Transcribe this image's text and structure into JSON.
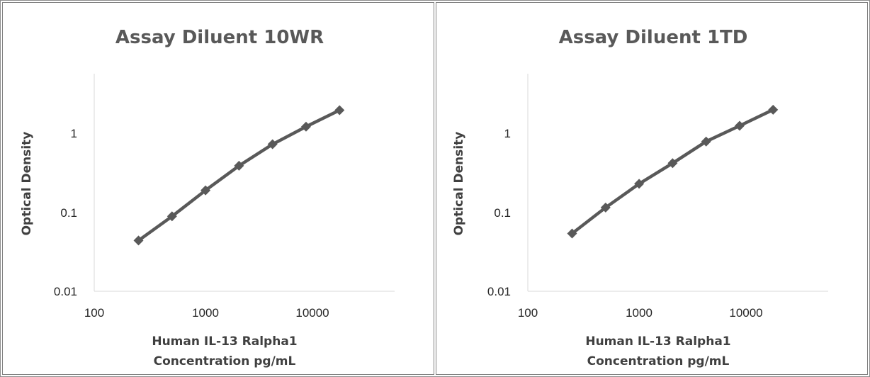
{
  "chart_data": [
    {
      "type": "line",
      "title": "Assay Diluent 10WR",
      "xlabel": [
        "Human IL-13 Ralpha1",
        "Concentration pg/mL"
      ],
      "ylabel": "Optical Density",
      "xscale": "log",
      "yscale": "log",
      "xlim": [
        100,
        50000
      ],
      "ylim": [
        0.01,
        10
      ],
      "xticks": [
        "100",
        "1000",
        "10000"
      ],
      "yticks": [
        "0.01",
        "0.1",
        "1"
      ],
      "grid": false,
      "series": [
        {
          "color": "#595959",
          "x": [
            250,
            500,
            1000,
            2000,
            4000,
            8000,
            16000
          ],
          "y": [
            0.044,
            0.089,
            0.19,
            0.39,
            0.73,
            1.22,
            1.97
          ]
        }
      ]
    },
    {
      "type": "line",
      "title": "Assay Diluent 1TD",
      "xlabel": [
        "Human IL-13 Ralpha1",
        "Concentration pg/mL"
      ],
      "ylabel": "Optical Density",
      "xscale": "log",
      "yscale": "log",
      "xlim": [
        100,
        50000
      ],
      "ylim": [
        0.01,
        10
      ],
      "xticks": [
        "100",
        "1000",
        "10000"
      ],
      "yticks": [
        "0.01",
        "0.1",
        "1"
      ],
      "grid": false,
      "series": [
        {
          "color": "#595959",
          "x": [
            250,
            500,
            1000,
            2000,
            4000,
            8000,
            16000
          ],
          "y": [
            0.054,
            0.115,
            0.23,
            0.42,
            0.79,
            1.25,
            2.0
          ]
        }
      ]
    }
  ]
}
